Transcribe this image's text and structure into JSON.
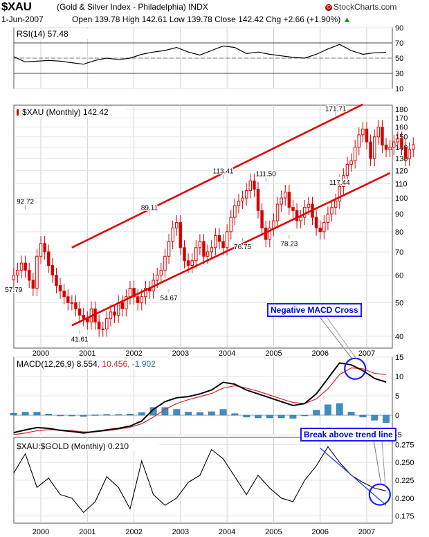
{
  "header": {
    "symbol": "$XAU",
    "description": "(Gold & Silver Index - Philadelphia) INDX",
    "brand": "StockCharts.com",
    "date": "1-Jun-2007",
    "ohlc": "Open 139.78  High 142.61  Low 139.78  Close 142.42  Chg +2.66 (+1.90%)",
    "ohlc_arrow": "▲"
  },
  "colors": {
    "up_candle": "#d40000",
    "down_candle": "#d40000",
    "trend_channel": "#e00000",
    "macd_line": "#000000",
    "signal_line": "#e02020",
    "histogram": "#3c8fc4",
    "callout": "#1a1aff",
    "ratio_trendline": "#2040ff"
  },
  "chart_data": [
    {
      "type": "line",
      "panel": "rsi",
      "label": "RSI(14) 57.48",
      "ylim": [
        10,
        90
      ],
      "y_ticks": [
        "90",
        "70",
        "50",
        "30",
        "10"
      ],
      "reference_lines": [
        70,
        30
      ],
      "x": [
        "1999-06",
        "1999-09",
        "1999-12",
        "2000-03",
        "2000-06",
        "2000-09",
        "2000-12",
        "2001-03",
        "2001-06",
        "2001-09",
        "2001-12",
        "2002-03",
        "2002-06",
        "2002-09",
        "2002-12",
        "2003-03",
        "2003-06",
        "2003-09",
        "2003-12",
        "2004-03",
        "2004-06",
        "2004-09",
        "2004-12",
        "2005-03",
        "2005-06",
        "2005-09",
        "2005-12",
        "2006-03",
        "2006-06",
        "2006-09",
        "2006-12",
        "2007-03",
        "2007-06"
      ],
      "values": [
        52,
        45,
        46,
        47,
        46,
        44,
        42,
        47,
        50,
        48,
        50,
        55,
        58,
        60,
        64,
        58,
        54,
        60,
        66,
        64,
        56,
        58,
        55,
        53,
        51,
        50,
        55,
        62,
        68,
        60,
        55,
        57,
        57.48
      ]
    },
    {
      "type": "candlestick",
      "panel": "price",
      "label": "$XAU (Monthly) 142.42",
      "scale": "log",
      "ylim": [
        37,
        185
      ],
      "y_ticks": [
        40,
        50,
        60,
        70,
        80,
        90,
        100,
        110,
        120,
        130,
        140,
        150,
        160,
        170,
        180
      ],
      "x_labels": [
        "2000",
        "2001",
        "2002",
        "2003",
        "2004",
        "2005",
        "2006",
        "2007"
      ],
      "x_range": [
        "1999-06",
        "2007-07"
      ],
      "closes": [
        60,
        62,
        65,
        62,
        58,
        55,
        68,
        74,
        70,
        64,
        60,
        56,
        54,
        52,
        50,
        50,
        48,
        46,
        45,
        44,
        48,
        44,
        42,
        42,
        45,
        47,
        46,
        50,
        48,
        52,
        55,
        52,
        50,
        52,
        55,
        54,
        58,
        60,
        62,
        68,
        75,
        82,
        85,
        72,
        66,
        64,
        66,
        72,
        75,
        68,
        70,
        72,
        78,
        75,
        72,
        80,
        88,
        95,
        98,
        100,
        105,
        112,
        106,
        92,
        82,
        76,
        82,
        86,
        96,
        100,
        104,
        94,
        92,
        86,
        88,
        94,
        96,
        88,
        82,
        80,
        85,
        90,
        94,
        98,
        108,
        116,
        125,
        128,
        140,
        152,
        158,
        145,
        130,
        150,
        160,
        142,
        138,
        140,
        145,
        148,
        140,
        130,
        138,
        142.42
      ],
      "annotations": [
        {
          "text": "92.72",
          "date": "1999-09",
          "value": 92.72,
          "kind": "high"
        },
        {
          "text": "57.79",
          "date": "1999-06",
          "value": 57.79,
          "kind": "low"
        },
        {
          "text": "41.61",
          "date": "2000-11",
          "value": 41.61,
          "kind": "low"
        },
        {
          "text": "89.11",
          "date": "2002-05",
          "value": 89.11,
          "kind": "high"
        },
        {
          "text": "54.67",
          "date": "2002-10",
          "value": 54.67,
          "kind": "low"
        },
        {
          "text": "113.41",
          "date": "2003-12",
          "value": 113.41,
          "kind": "high"
        },
        {
          "text": "76.75",
          "date": "2004-05",
          "value": 76.75,
          "kind": "low"
        },
        {
          "text": "111.50",
          "date": "2004-11",
          "value": 111.5,
          "kind": "high"
        },
        {
          "text": "78.23",
          "date": "2005-05",
          "value": 78.23,
          "kind": "low"
        },
        {
          "text": "171.71",
          "date": "2006-05",
          "value": 171.71,
          "kind": "high"
        },
        {
          "text": "117.44",
          "date": "2006-06",
          "value": 117.44,
          "kind": "low"
        }
      ],
      "channel": [
        {
          "from": [
            "2000-09",
            72
          ],
          "to": [
            "2006-12",
            186
          ]
        },
        {
          "from": [
            "2000-09",
            43
          ],
          "to": [
            "2007-07",
            118
          ]
        }
      ]
    },
    {
      "type": "line",
      "panel": "macd",
      "label": "MACD(12,26,9) 8.554, 10.456, -1.902",
      "legend": [
        "MACD(12,26,9)",
        "8.554",
        "10.456",
        "-1.902"
      ],
      "ylim": [
        -5,
        15
      ],
      "y_ticks": [
        "15",
        "10",
        "5",
        "0",
        "-5"
      ],
      "x": [
        "1999-06",
        "1999-09",
        "1999-12",
        "2000-03",
        "2000-06",
        "2000-09",
        "2000-12",
        "2001-03",
        "2001-06",
        "2001-09",
        "2001-12",
        "2002-03",
        "2002-06",
        "2002-09",
        "2002-12",
        "2003-03",
        "2003-06",
        "2003-09",
        "2003-12",
        "2004-03",
        "2004-06",
        "2004-09",
        "2004-12",
        "2005-03",
        "2005-06",
        "2005-09",
        "2005-12",
        "2006-03",
        "2006-06",
        "2006-09",
        "2006-12",
        "2007-03",
        "2007-06"
      ],
      "series": [
        {
          "name": "MACD",
          "values": [
            -4.5,
            -3.8,
            -3.2,
            -3.4,
            -3.9,
            -4.2,
            -4.6,
            -4.2,
            -3.8,
            -3.4,
            -2.8,
            -1.5,
            1.5,
            3.5,
            4.5,
            4.8,
            5.5,
            6.5,
            8.5,
            8.0,
            6.5,
            5.5,
            4.5,
            3.5,
            2.5,
            3.0,
            5.5,
            9.5,
            13.5,
            13.0,
            11.5,
            9.5,
            8.55
          ]
        },
        {
          "name": "Signal",
          "values": [
            -5.0,
            -4.6,
            -4.0,
            -3.7,
            -3.8,
            -4.0,
            -4.3,
            -4.3,
            -4.0,
            -3.6,
            -3.1,
            -2.2,
            -0.5,
            1.5,
            3.0,
            4.0,
            4.8,
            5.6,
            7.0,
            7.6,
            7.0,
            6.2,
            5.2,
            4.2,
            3.3,
            3.0,
            4.2,
            6.8,
            10.5,
            12.2,
            12.0,
            10.8,
            10.46
          ]
        },
        {
          "name": "Histogram",
          "values": [
            0.5,
            0.8,
            0.8,
            0.3,
            -0.1,
            -0.2,
            -0.3,
            0.1,
            0.2,
            0.2,
            0.3,
            0.7,
            2.0,
            2.0,
            1.5,
            0.8,
            0.7,
            0.9,
            1.5,
            0.4,
            -0.5,
            -0.7,
            -0.7,
            -0.7,
            -0.8,
            0.0,
            1.3,
            2.7,
            3.0,
            0.8,
            -0.5,
            -1.3,
            -1.9
          ]
        }
      ]
    },
    {
      "type": "line",
      "panel": "ratio",
      "label": "$XAU:$GOLD (Monthly) 0.210",
      "ylim": [
        0.165,
        0.285
      ],
      "y_ticks": [
        "0.275",
        "0.250",
        "0.225",
        "0.200",
        "0.175"
      ],
      "x_labels": [
        "2000",
        "2001",
        "2002",
        "2003",
        "2004",
        "2005",
        "2006",
        "2007"
      ],
      "x": [
        "1999-06",
        "1999-09",
        "1999-12",
        "2000-03",
        "2000-06",
        "2000-09",
        "2000-12",
        "2001-03",
        "2001-06",
        "2001-09",
        "2001-12",
        "2002-03",
        "2002-06",
        "2002-09",
        "2002-12",
        "2003-03",
        "2003-06",
        "2003-09",
        "2003-12",
        "2004-03",
        "2004-06",
        "2004-09",
        "2004-12",
        "2005-03",
        "2005-06",
        "2005-09",
        "2005-12",
        "2006-03",
        "2006-06",
        "2006-09",
        "2006-12",
        "2007-03",
        "2007-06"
      ],
      "values": [
        0.235,
        0.262,
        0.215,
        0.228,
        0.205,
        0.2,
        0.18,
        0.195,
        0.23,
        0.215,
        0.185,
        0.252,
        0.205,
        0.19,
        0.2,
        0.222,
        0.232,
        0.268,
        0.255,
        0.23,
        0.205,
        0.232,
        0.214,
        0.2,
        0.195,
        0.225,
        0.245,
        0.272,
        0.25,
        0.232,
        0.222,
        0.214,
        0.21
      ],
      "trendline": {
        "from": [
          "2006-01",
          0.27
        ],
        "to": [
          "2007-06",
          0.19
        ]
      }
    }
  ],
  "callouts": {
    "macd": "Negative MACD Cross",
    "trend": "Break above trend line"
  }
}
